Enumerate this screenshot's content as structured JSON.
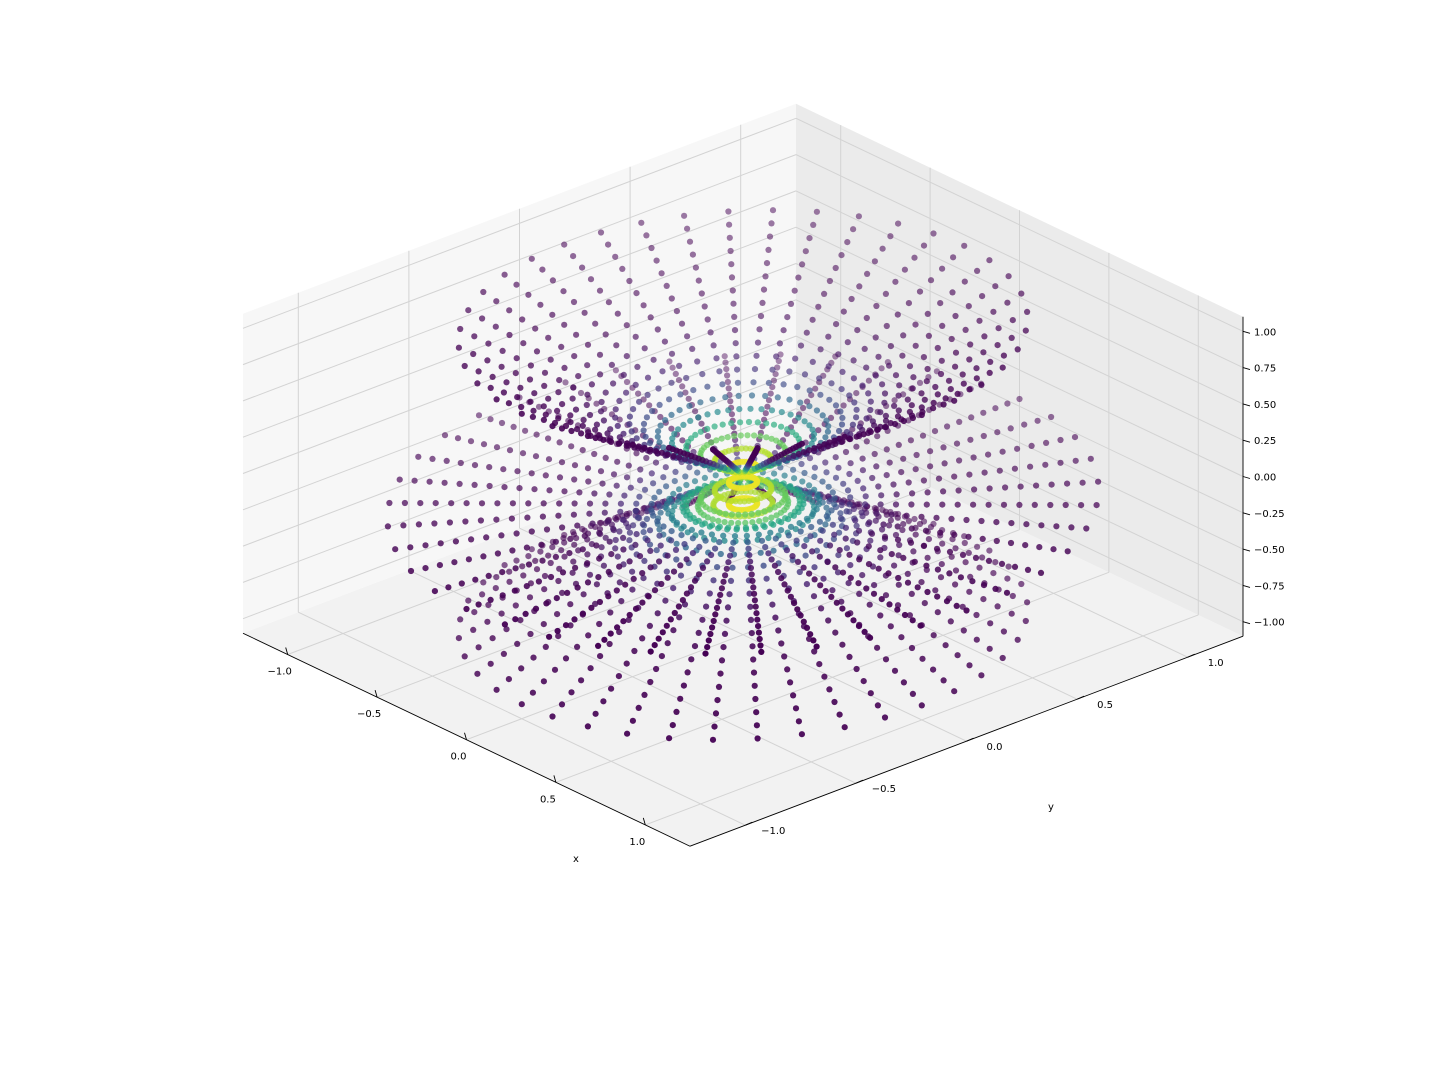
{
  "chart_data": {
    "type": "scatter",
    "projection": "3d",
    "title": "",
    "xlabel": "x",
    "ylabel": "y",
    "zlabel": "",
    "xlim": [
      -1.25,
      1.25
    ],
    "ylim": [
      -1.25,
      1.25
    ],
    "zlim": [
      -1.1,
      1.1
    ],
    "xticks": [
      "−1.0",
      "−0.5",
      "0.0",
      "0.5",
      "1.0"
    ],
    "yticks": [
      "−1.0",
      "−0.5",
      "0.0",
      "0.5",
      "1.0"
    ],
    "zticks": [
      "−1.00",
      "−0.75",
      "−0.50",
      "−0.25",
      "0.00",
      "0.25",
      "0.50",
      "0.75",
      "1.00"
    ],
    "grid": true,
    "colormap": "viridis",
    "pane_colors": [
      "#f2f2f2",
      "#ebebeb",
      "#f7f7f7"
    ],
    "surfaces": [
      {
        "name": "",
        "kind": "cone",
        "z_range": [
          0.0,
          1.0
        ],
        "radius_equals": "z",
        "rings": 20,
        "spokes": 40
      },
      {
        "name": "",
        "kind": "cone",
        "z_range": [
          -1.0,
          0.0
        ],
        "radius_equals": "-z",
        "rings": 20,
        "spokes": 40
      },
      {
        "name": "",
        "kind": "plane",
        "z": -0.2,
        "r_range": [
          0.05,
          1.25
        ],
        "rings": 23,
        "spokes": 40
      }
    ],
    "color_value": "exp(-12 * r^2)"
  }
}
